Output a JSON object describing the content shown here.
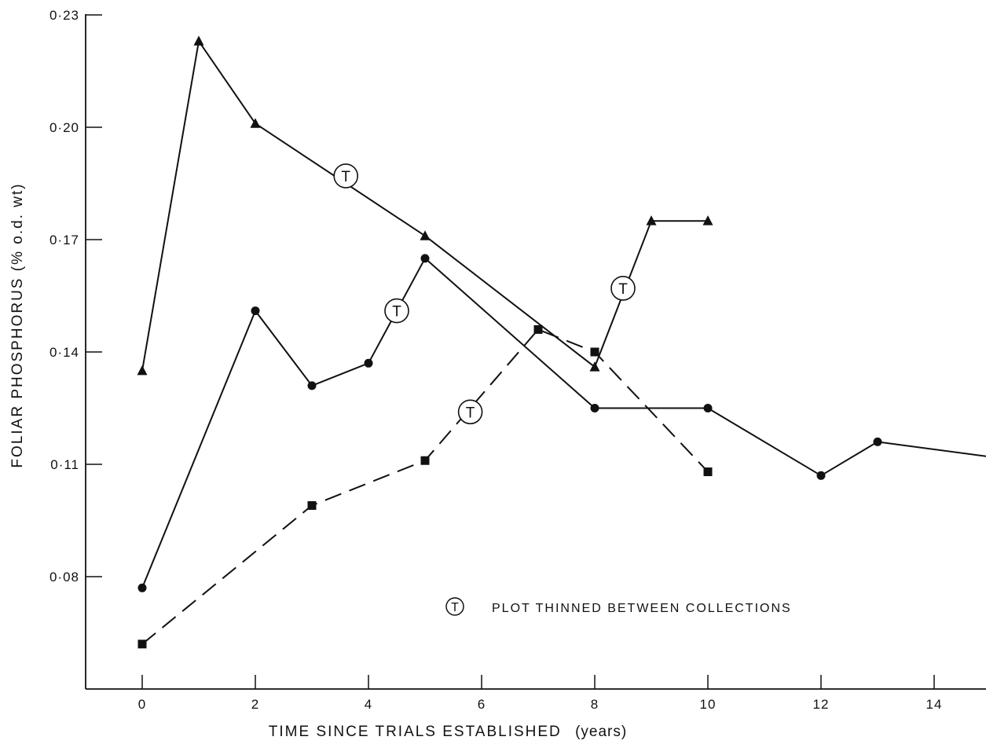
{
  "chart_data": {
    "type": "line",
    "title": "",
    "xlabel": "TIME SINCE TRIALS ESTABLISHED",
    "xlabel_unit": "(years)",
    "ylabel": "FOLIAR PHOSPHORUS (% o.d. wt)",
    "xlim": [
      -1,
      15
    ],
    "ylim": [
      0.05,
      0.23
    ],
    "x_ticks": [
      0,
      2,
      4,
      6,
      8,
      10,
      12,
      14
    ],
    "y_ticks": [
      0.08,
      0.11,
      0.14,
      0.17,
      0.2,
      0.23
    ],
    "x_tick_labels": [
      "0",
      "2",
      "4",
      "6",
      "8",
      "10",
      "12",
      "14"
    ],
    "y_tick_labels": [
      "0·08",
      "0·11",
      "0·14",
      "0·17",
      "0·20",
      "0·23"
    ],
    "grid": false,
    "series": [
      {
        "marker": "triangle",
        "line_style": "solid",
        "points": [
          [
            0,
            0.135
          ],
          [
            1,
            0.223
          ],
          [
            2,
            0.201
          ],
          [
            5,
            0.171
          ],
          [
            8,
            0.136
          ],
          [
            9,
            0.175
          ],
          [
            10,
            0.175
          ]
        ]
      },
      {
        "marker": "circle",
        "line_style": "solid",
        "points": [
          [
            0,
            0.077
          ],
          [
            2,
            0.151
          ],
          [
            3,
            0.131
          ],
          [
            4,
            0.137
          ],
          [
            5,
            0.165
          ],
          [
            8,
            0.125
          ],
          [
            10,
            0.125
          ],
          [
            12,
            0.107
          ],
          [
            13,
            0.116
          ],
          [
            15,
            0.112
          ]
        ]
      },
      {
        "marker": "square",
        "line_style": "dashed",
        "points": [
          [
            0,
            0.062
          ],
          [
            3,
            0.099
          ],
          [
            5,
            0.111
          ],
          [
            7,
            0.146
          ],
          [
            8,
            0.14
          ],
          [
            10,
            0.108
          ]
        ]
      }
    ],
    "annotations": [
      {
        "text": "T",
        "x": 3.6,
        "y": 0.187
      },
      {
        "text": "T",
        "x": 4.5,
        "y": 0.151
      },
      {
        "text": "T",
        "x": 5.8,
        "y": 0.124
      },
      {
        "text": "T",
        "x": 8.5,
        "y": 0.157
      }
    ],
    "legend": {
      "placement": "lower-right",
      "symbol": "T",
      "text": "PLOT THINNED BETWEEN COLLECTIONS"
    }
  }
}
